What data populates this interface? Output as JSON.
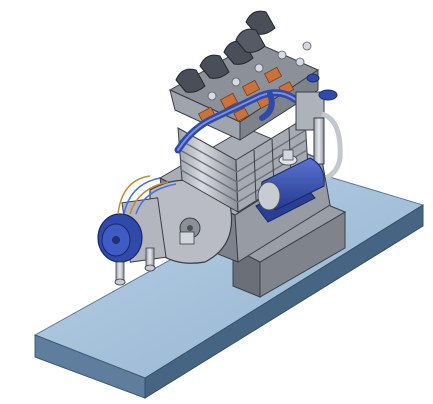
{
  "scene": {
    "subject": "engine-model-render",
    "colors": {
      "background": "#ffffff",
      "base_top": "#a9c4dd",
      "base_front": "#5f7d9c",
      "base_side": "#456582",
      "pedestal": "#7a7d86",
      "crankcase": "#8a8e98",
      "cylinder": "#b7bac2",
      "fin": "#8f939c",
      "head_cap": "#4a4e58",
      "copper": "#c9733a",
      "blue_part": "#2f4aa8",
      "blue_dark": "#1f2f78",
      "steel": "#cfd3da"
    }
  }
}
